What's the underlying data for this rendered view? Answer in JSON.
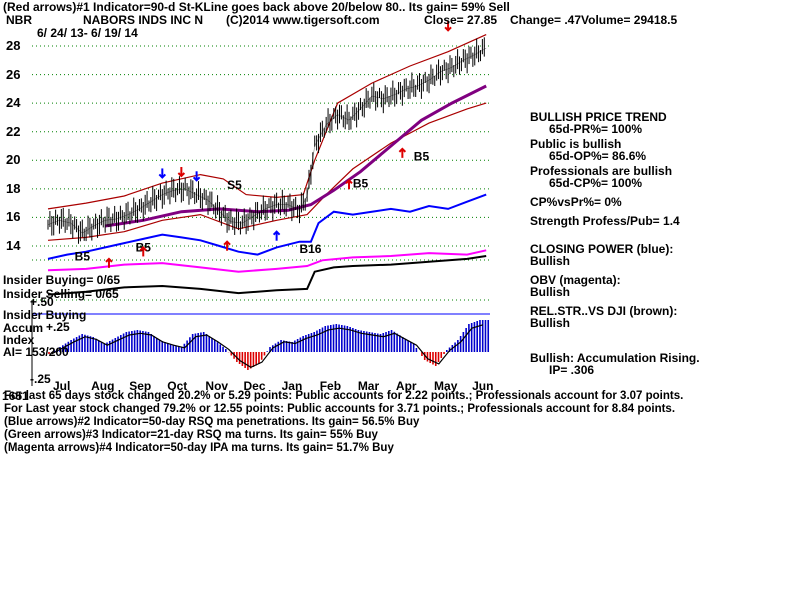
{
  "header": {
    "line1": "(Red arrows)#1 Indicator=90-d St-KLine goes back above 20/below 80.. Its gain= 59% Sell",
    "symbol": "NBR",
    "company": "NABORS INDS INC N",
    "copyright": "(C)2014 www.tigersoft.com",
    "close": "Close= 27.85",
    "change": "Change= .47",
    "volume": "Volume= 29418.5",
    "daterange": "6/ 24/ 13- 6/ 19/ 14"
  },
  "sidebar": [
    {
      "text": "BULLISH PRICE TREND",
      "indent": false
    },
    {
      "text": "65d-PR%= 100%",
      "indent": true
    },
    {
      "text": "Public is bullish",
      "indent": false
    },
    {
      "text": "65d-OP%= 86.6%",
      "indent": true
    },
    {
      "text": "Professionals are bullish",
      "indent": false
    },
    {
      "text": "65d-CP%= 100%",
      "indent": true
    },
    {
      "text": "CP%vsPr%=  0%",
      "indent": false
    },
    {
      "text": "Strength Profess/Pub= 1.4",
      "indent": false
    },
    {
      "text": "CLOSING POWER (blue):",
      "indent": false
    },
    {
      "text": "Bullish",
      "indent": false
    },
    {
      "text": "OBV (magenta):",
      "indent": false
    },
    {
      "text": "Bullish",
      "indent": false
    },
    {
      "text": "REL.STR..VS DJI (brown):",
      "indent": false
    },
    {
      "text": "Bullish",
      "indent": false
    },
    {
      "text": "Bullish: Accumulation Rising.",
      "indent": false
    },
    {
      "text": "IP=  .306",
      "indent": true
    }
  ],
  "left_labels": {
    "insider_buying": "Insider Buying= 0/65",
    "insider_selling": "Insider Selling= 0/65",
    "insider_buying2": "Insider Buying",
    "accum": "Accum",
    "index": "Index",
    "ai": "AI= 153/200",
    "ai_tick_50": "+.50",
    "ai_tick_25": "+.25",
    "ai_tick_m25": "-.25"
  },
  "footer": [
    "For last 65 days stock changed  20.2% or  5.29 points:  Public accounts for  2.22 points.;  Professionals account for  3.07 points.",
    "For Last year stock changed  79.2% or  12.55 points:  Public accounts for  3.71 points.;  Professionals account for  8.84 points.",
    "(Blue arrows)#2 Indicator=50-day RSQ ma penetrations. Its gain= 56.5% Buy",
    "(Green arrows)#3 Indicator=21-day RSQ ma turns. Its gain= 55% Buy",
    "(Magenta arrows)#4 Indicator=50-day IPA ma turns. Its gain= 51.7% Buy"
  ],
  "footer_overlap_label": "1651",
  "colors": {
    "price": "#000000",
    "band": "#aa0000",
    "ma50": "#800080",
    "closing_power": "#0000ff",
    "obv": "#ff00ff",
    "relstr": "#8b4513",
    "accum_pos": "#0000cc",
    "accum_neg": "#dd0000",
    "grid": "#008000"
  },
  "chart_data": {
    "type": "line",
    "title": "NABORS INDS INC N",
    "xlabel": "",
    "ylabel": "",
    "ylim": [
      13,
      29
    ],
    "months": [
      "Jul",
      "Aug",
      "Sep",
      "Oct",
      "Nov",
      "Dec",
      "Jan",
      "Feb",
      "Mar",
      "Apr",
      "May",
      "Jun"
    ],
    "y_ticks": [
      14,
      16,
      18,
      20,
      22,
      24,
      26,
      28
    ],
    "price_points": [
      [
        0,
        15.5
      ],
      [
        0.3,
        15.8
      ],
      [
        0.6,
        15.6
      ],
      [
        0.9,
        14.9
      ],
      [
        1.2,
        15.4
      ],
      [
        1.5,
        15.8
      ],
      [
        1.8,
        15.9
      ],
      [
        2.1,
        16.2
      ],
      [
        2.4,
        16.6
      ],
      [
        2.7,
        17.1
      ],
      [
        3.0,
        17.6
      ],
      [
        3.3,
        17.9
      ],
      [
        3.6,
        18.0
      ],
      [
        3.9,
        17.6
      ],
      [
        4.2,
        17.2
      ],
      [
        4.5,
        16.4
      ],
      [
        4.8,
        15.7
      ],
      [
        5.1,
        15.6
      ],
      [
        5.4,
        16.1
      ],
      [
        5.7,
        16.6
      ],
      [
        6.0,
        16.9
      ],
      [
        6.3,
        16.9
      ],
      [
        6.6,
        16.5
      ],
      [
        6.8,
        17.5
      ],
      [
        7.0,
        21.0
      ],
      [
        7.3,
        22.5
      ],
      [
        7.6,
        23.2
      ],
      [
        7.9,
        22.8
      ],
      [
        8.2,
        23.6
      ],
      [
        8.5,
        24.5
      ],
      [
        8.8,
        24.3
      ],
      [
        9.1,
        24.6
      ],
      [
        9.4,
        25.0
      ],
      [
        9.7,
        25.2
      ],
      [
        10.0,
        25.6
      ],
      [
        10.3,
        26.2
      ],
      [
        10.6,
        26.5
      ],
      [
        10.9,
        27.0
      ],
      [
        11.2,
        27.4
      ],
      [
        11.5,
        27.85
      ]
    ],
    "ma50_points": [
      [
        1.5,
        15.4
      ],
      [
        2.5,
        15.8
      ],
      [
        3.5,
        16.4
      ],
      [
        4.5,
        16.6
      ],
      [
        5.5,
        16.4
      ],
      [
        6.3,
        16.5
      ],
      [
        6.9,
        16.9
      ],
      [
        7.5,
        17.9
      ],
      [
        8.2,
        19.2
      ],
      [
        9.0,
        21.0
      ],
      [
        9.8,
        22.8
      ],
      [
        10.6,
        24.0
      ],
      [
        11.5,
        25.2
      ]
    ],
    "upper_band_points": [
      [
        0,
        16.6
      ],
      [
        1,
        17.0
      ],
      [
        2,
        17.5
      ],
      [
        3,
        18.4
      ],
      [
        4,
        19.0
      ],
      [
        4.6,
        18.7
      ],
      [
        5.2,
        17.6
      ],
      [
        6.0,
        17.4
      ],
      [
        6.7,
        17.6
      ],
      [
        7.0,
        20.0
      ],
      [
        7.6,
        24.0
      ],
      [
        8.5,
        25.4
      ],
      [
        9.5,
        26.6
      ],
      [
        10.5,
        27.6
      ],
      [
        11.5,
        28.8
      ]
    ],
    "lower_band_points": [
      [
        0,
        14.4
      ],
      [
        1,
        14.6
      ],
      [
        2,
        15.0
      ],
      [
        3,
        15.8
      ],
      [
        4,
        16.2
      ],
      [
        5.0,
        15.2
      ],
      [
        6.0,
        15.8
      ],
      [
        6.8,
        16.2
      ],
      [
        7.3,
        17.6
      ],
      [
        8.0,
        19.4
      ],
      [
        9.0,
        21.2
      ],
      [
        10.0,
        22.6
      ],
      [
        11.0,
        23.6
      ],
      [
        11.5,
        24.0
      ]
    ],
    "annotations": [
      {
        "text": "S5",
        "x": 4.7,
        "y": 18.0
      },
      {
        "text": "B5",
        "x": 0.7,
        "y": 13.0
      },
      {
        "text": "B5",
        "x": 2.3,
        "y": 13.6
      },
      {
        "text": "B5",
        "x": 8.0,
        "y": 18.1
      },
      {
        "text": "B5",
        "x": 9.6,
        "y": 20.0
      },
      {
        "text": "B16",
        "x": 6.6,
        "y": 13.5
      }
    ],
    "arrows": [
      {
        "color": "red",
        "dir": "down",
        "x": 3.5,
        "y": 18.9
      },
      {
        "color": "red",
        "dir": "down",
        "x": 10.5,
        "y": 29.1
      },
      {
        "color": "red",
        "dir": "up",
        "x": 1.6,
        "y": 13.1
      },
      {
        "color": "red",
        "dir": "up",
        "x": 2.5,
        "y": 13.9
      },
      {
        "color": "red",
        "dir": "up",
        "x": 4.7,
        "y": 14.3
      },
      {
        "color": "red",
        "dir": "up",
        "x": 7.9,
        "y": 18.6
      },
      {
        "color": "red",
        "dir": "up",
        "x": 9.3,
        "y": 20.8
      },
      {
        "color": "blue",
        "dir": "down",
        "x": 3.0,
        "y": 18.8
      },
      {
        "color": "blue",
        "dir": "down",
        "x": 3.9,
        "y": 18.6
      },
      {
        "color": "blue",
        "dir": "up",
        "x": 6.0,
        "y": 15.0
      }
    ],
    "closing_power_points": [
      [
        0,
        13.1
      ],
      [
        0.5,
        13.4
      ],
      [
        1,
        13.6
      ],
      [
        1.5,
        13.9
      ],
      [
        2,
        14.2
      ],
      [
        2.5,
        14.5
      ],
      [
        3,
        14.8
      ],
      [
        3.5,
        14.6
      ],
      [
        4,
        14.4
      ],
      [
        4.5,
        14.0
      ],
      [
        5,
        13.6
      ],
      [
        5.5,
        13.4
      ],
      [
        6,
        13.9
      ],
      [
        6.6,
        14.3
      ],
      [
        6.9,
        14.3
      ],
      [
        7.1,
        15.6
      ],
      [
        7.5,
        16.4
      ],
      [
        8,
        16.2
      ],
      [
        8.5,
        16.4
      ],
      [
        9,
        16.6
      ],
      [
        9.5,
        16.4
      ],
      [
        10,
        16.8
      ],
      [
        10.5,
        16.6
      ],
      [
        11,
        17.1
      ],
      [
        11.5,
        17.6
      ]
    ],
    "obv_points": [
      [
        0,
        12.3
      ],
      [
        1,
        12.4
      ],
      [
        2,
        12.7
      ],
      [
        3,
        12.8
      ],
      [
        4,
        12.5
      ],
      [
        5,
        12.2
      ],
      [
        6,
        12.4
      ],
      [
        6.8,
        12.6
      ],
      [
        7.2,
        13.0
      ],
      [
        8,
        13.2
      ],
      [
        9,
        13.3
      ],
      [
        10,
        13.5
      ],
      [
        11,
        13.4
      ],
      [
        11.5,
        13.7
      ]
    ],
    "relstr_points": [
      [
        0,
        10.6
      ],
      [
        1,
        10.8
      ],
      [
        2,
        11.1
      ],
      [
        3,
        11.2
      ],
      [
        4,
        11.0
      ],
      [
        5,
        10.7
      ],
      [
        6,
        10.9
      ],
      [
        6.8,
        11.0
      ],
      [
        7.0,
        12.2
      ],
      [
        7.5,
        12.5
      ],
      [
        8,
        12.6
      ],
      [
        9,
        12.7
      ],
      [
        10,
        12.9
      ],
      [
        11,
        13.1
      ],
      [
        11.5,
        13.3
      ]
    ],
    "accum_index": [
      -0.02,
      0.05,
      0.12,
      0.18,
      0.15,
      0.08,
      0.14,
      0.2,
      0.22,
      0.2,
      0.12,
      0.08,
      0.05,
      0.18,
      0.2,
      0.12,
      0.03,
      -0.1,
      -0.18,
      -0.12,
      0.05,
      0.12,
      0.1,
      0.16,
      0.2,
      0.26,
      0.28,
      0.26,
      0.22,
      0.2,
      0.18,
      0.22,
      0.15,
      0.08,
      -0.08,
      -0.14,
      0.02,
      0.12,
      0.28,
      0.32
    ]
  }
}
